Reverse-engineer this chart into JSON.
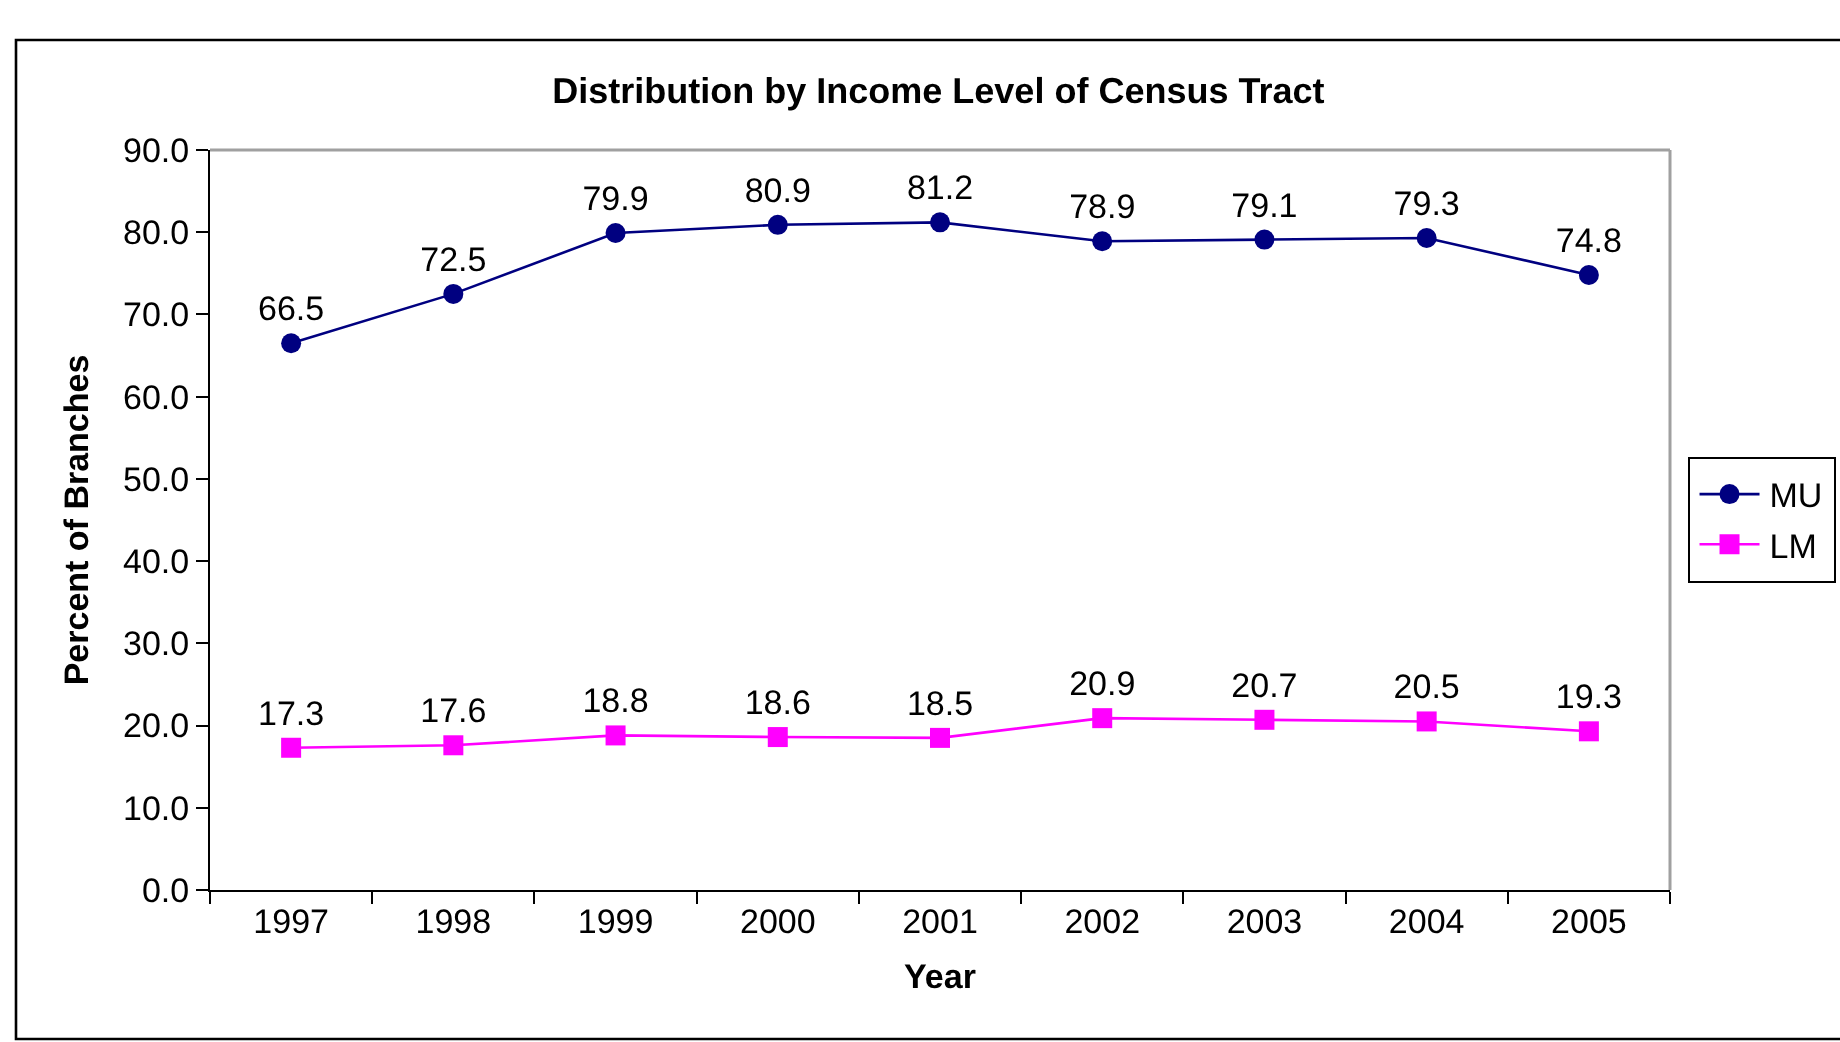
{
  "chart_data": {
    "type": "line",
    "title": "Distribution by Income Level of Census Tract",
    "xlabel": "Year",
    "ylabel": "Percent of Branches",
    "categories": [
      "1997",
      "1998",
      "1999",
      "2000",
      "2001",
      "2002",
      "2003",
      "2004",
      "2005"
    ],
    "series": [
      {
        "name": "MU",
        "color": "#000080",
        "marker": "circle",
        "values": [
          66.5,
          72.5,
          79.9,
          80.9,
          81.2,
          78.9,
          79.1,
          79.3,
          74.8
        ]
      },
      {
        "name": "LM",
        "color": "#ff00ff",
        "marker": "square",
        "values": [
          17.3,
          17.6,
          18.8,
          18.6,
          18.5,
          20.9,
          20.7,
          20.5,
          19.3
        ]
      }
    ],
    "ylim": [
      0,
      90
    ],
    "yticks": [
      {
        "value": 0,
        "label": "0.0"
      },
      {
        "value": 10,
        "label": "10.0"
      },
      {
        "value": 20,
        "label": "20.0"
      },
      {
        "value": 30,
        "label": "30.0"
      },
      {
        "value": 40,
        "label": "40.0"
      },
      {
        "value": 50,
        "label": "50.0"
      },
      {
        "value": 60,
        "label": "60.0"
      },
      {
        "value": 70,
        "label": "70.0"
      },
      {
        "value": 80,
        "label": "80.0"
      },
      {
        "value": 90,
        "label": "90.0"
      }
    ],
    "data_labels": true,
    "grid": false,
    "legend": "right",
    "line_style": "solid"
  }
}
